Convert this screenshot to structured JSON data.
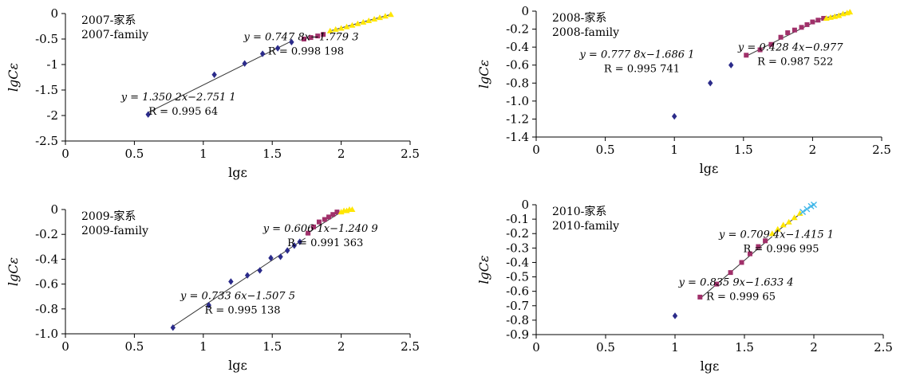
{
  "chart_data": [
    {
      "type": "scatter",
      "legend_lines": [
        "2007-家系",
        "2007-family"
      ],
      "xlabel": "lgε",
      "ylabel": "lgCε",
      "xlim": [
        0,
        2.5
      ],
      "ylim": [
        -2.5,
        0
      ],
      "xticks": [
        "0",
        "0.5",
        "1",
        "1.5",
        "2",
        "2.5"
      ],
      "yticks": [
        "0",
        "-0.5",
        "-1",
        "-1.5",
        "-2",
        "-2.5"
      ],
      "series": [
        {
          "marker": "diamond",
          "color": "#2b2b8a",
          "x": [
            0.6,
            1.08,
            1.3,
            1.43,
            1.54,
            1.64
          ],
          "y": [
            -1.98,
            -1.2,
            -0.98,
            -0.79,
            -0.68,
            -0.56
          ]
        },
        {
          "marker": "square",
          "color": "#a0306a",
          "x": [
            1.73,
            1.78,
            1.83,
            1.87
          ],
          "y": [
            -0.5,
            -0.47,
            -0.44,
            -0.41
          ]
        },
        {
          "marker": "triangle",
          "color": "#ffe600",
          "x": [
            1.92,
            1.96,
            2.0,
            2.04,
            2.08,
            2.12,
            2.16,
            2.2,
            2.24,
            2.28,
            2.32,
            2.36
          ],
          "y": [
            -0.34,
            -0.31,
            -0.29,
            -0.26,
            -0.23,
            -0.2,
            -0.17,
            -0.14,
            -0.11,
            -0.08,
            -0.05,
            -0.02
          ]
        }
      ],
      "fits": [
        {
          "x": [
            0.6,
            1.64
          ],
          "y": [
            -1.94,
            -0.54
          ]
        },
        {
          "x": [
            1.92,
            2.37
          ],
          "y": [
            -0.34,
            -0.01
          ]
        }
      ],
      "annotations": [
        {
          "eq": "y = 1.350 2x−2.751 1",
          "r": "R = 0.995 64",
          "x": 0.82,
          "y": -1.7
        },
        {
          "eq": "y = 0.747 8x−1.779 3",
          "r": "R = 0.998 198",
          "x": 1.71,
          "y": -0.52
        }
      ]
    },
    {
      "type": "scatter",
      "legend_lines": [
        "2008-家系",
        "2008-family"
      ],
      "xlabel": "lgε",
      "ylabel": "lgCε",
      "xlim": [
        0,
        2.5
      ],
      "ylim": [
        -1.4,
        0
      ],
      "xticks": [
        "0",
        "0.5",
        "1",
        "1.5",
        "2",
        "2.5"
      ],
      "yticks": [
        "0",
        "-0.2",
        "-0.4",
        "-0.6",
        "-0.8",
        "-1.0",
        "-1.2",
        "-1.4"
      ],
      "series": [
        {
          "marker": "diamond",
          "color": "#2b2b8a",
          "x": [
            1.0,
            1.26,
            1.41
          ],
          "y": [
            -1.17,
            -0.8,
            -0.6
          ]
        },
        {
          "marker": "square",
          "color": "#a0306a",
          "x": [
            1.52,
            1.62,
            1.7,
            1.77,
            1.82,
            1.87,
            1.92,
            1.96,
            2.0,
            2.04,
            2.08
          ],
          "y": [
            -0.49,
            -0.43,
            -0.37,
            -0.29,
            -0.24,
            -0.21,
            -0.18,
            -0.15,
            -0.12,
            -0.1,
            -0.08
          ]
        },
        {
          "marker": "triangle",
          "color": "#ffe600",
          "x": [
            2.1,
            2.13,
            2.16,
            2.19,
            2.22,
            2.25,
            2.27
          ],
          "y": [
            -0.08,
            -0.07,
            -0.06,
            -0.05,
            -0.03,
            -0.02,
            -0.01
          ]
        }
      ],
      "fits": [
        {
          "x": [
            1.52,
            2.08
          ],
          "y": [
            -0.5,
            -0.07
          ]
        },
        {
          "x": [
            2.08,
            2.28
          ],
          "y": [
            -0.08,
            0.0
          ]
        }
      ],
      "annotations": [
        {
          "eq": "y = 0.777 8x−1.686 1",
          "r": "R = 0.995 741",
          "x": 0.73,
          "y": -0.52
        },
        {
          "eq": "y = 0.428 4x−0.977",
          "r": "R = 0.987 522",
          "x": 1.84,
          "y": -0.44
        }
      ]
    },
    {
      "type": "scatter",
      "legend_lines": [
        "2009-家系",
        "2009-family"
      ],
      "xlabel": "lgε",
      "ylabel": "lgCε",
      "xlim": [
        0,
        2.5
      ],
      "ylim": [
        -1.0,
        0
      ],
      "xticks": [
        "0",
        "0.5",
        "1",
        "1.5",
        "2",
        "2.5"
      ],
      "yticks": [
        "0",
        "-0.2",
        "-0.4",
        "-0.6",
        "-0.8",
        "-1.0"
      ],
      "series": [
        {
          "marker": "diamond",
          "color": "#2b2b8a",
          "x": [
            0.78,
            1.04,
            1.2,
            1.32,
            1.41,
            1.49,
            1.56,
            1.61,
            1.66,
            1.7
          ],
          "y": [
            -0.95,
            -0.77,
            -0.58,
            -0.53,
            -0.49,
            -0.39,
            -0.38,
            -0.33,
            -0.29,
            -0.26
          ]
        },
        {
          "marker": "square",
          "color": "#a0306a",
          "x": [
            1.76,
            1.8,
            1.84,
            1.88,
            1.91,
            1.94,
            1.97
          ],
          "y": [
            -0.19,
            -0.14,
            -0.1,
            -0.08,
            -0.06,
            -0.04,
            -0.02
          ]
        },
        {
          "marker": "triangle",
          "color": "#ffe600",
          "x": [
            2.0,
            2.02,
            2.04,
            2.06,
            2.08
          ],
          "y": [
            -0.02,
            -0.01,
            -0.01,
            0.0,
            0.0
          ]
        }
      ],
      "fits": [
        {
          "x": [
            0.78,
            1.74
          ],
          "y": [
            -0.94,
            -0.23
          ]
        },
        {
          "x": [
            1.74,
            2.0
          ],
          "y": [
            -0.2,
            -0.02
          ]
        }
      ],
      "annotations": [
        {
          "eq": "y = 0.606 1x−1.240 9",
          "r": "R = 0.991 363",
          "x": 1.85,
          "y": -0.18
        },
        {
          "eq": "y = 0.733 6x−1.507 5",
          "r": "R = 0.995 138",
          "x": 1.25,
          "y": -0.72
        }
      ]
    },
    {
      "type": "scatter",
      "legend_lines": [
        "2010-家系",
        "2010-family"
      ],
      "xlabel": "lgε",
      "ylabel": "lgCε",
      "xlim": [
        0,
        2.5
      ],
      "ylim": [
        -0.9,
        0
      ],
      "xticks": [
        "0",
        "0.5",
        "1",
        "1.5",
        "2",
        "2.5"
      ],
      "yticks": [
        "0",
        "-0.1",
        "-0.2",
        "-0.3",
        "-0.4",
        "-0.5",
        "-0.6",
        "-0.7",
        "-0.8",
        "-0.9"
      ],
      "series": [
        {
          "marker": "diamond",
          "color": "#2b2b8a",
          "x": [
            1.0
          ],
          "y": [
            -0.77
          ]
        },
        {
          "marker": "square",
          "color": "#a0306a",
          "x": [
            1.18,
            1.3,
            1.4,
            1.48,
            1.54,
            1.6,
            1.65
          ],
          "y": [
            -0.64,
            -0.55,
            -0.47,
            -0.4,
            -0.34,
            -0.29,
            -0.25
          ]
        },
        {
          "marker": "triangle",
          "color": "#ffe600",
          "x": [
            1.7,
            1.74,
            1.78,
            1.82,
            1.86,
            1.9
          ],
          "y": [
            -0.2,
            -0.17,
            -0.14,
            -0.12,
            -0.09,
            -0.06
          ]
        },
        {
          "marker": "cross",
          "color": "#3fb6e8",
          "x": [
            1.92,
            1.95,
            1.98,
            2.0
          ],
          "y": [
            -0.05,
            -0.03,
            -0.01,
            0.0
          ]
        }
      ],
      "fits": [
        {
          "x": [
            1.18,
            1.7
          ],
          "y": [
            -0.65,
            -0.22
          ]
        },
        {
          "x": [
            1.7,
            1.92
          ],
          "y": [
            -0.21,
            -0.05
          ]
        }
      ],
      "annotations": [
        {
          "eq": "y = 0.709 4x−1.415 1",
          "r": "R = 0.996 995",
          "x": 1.73,
          "y": -0.23
        },
        {
          "eq": "y = 0.835 9x−1.633 4",
          "r": "R = 0.999 65",
          "x": 1.44,
          "y": -0.56
        }
      ]
    }
  ]
}
